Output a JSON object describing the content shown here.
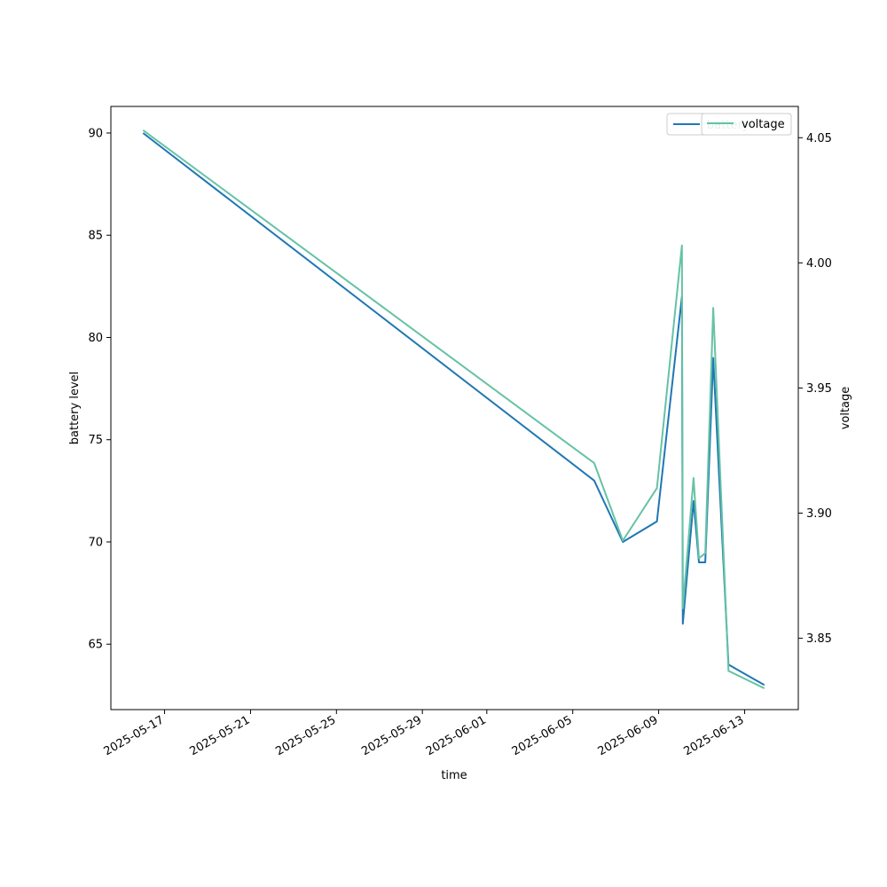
{
  "chart_data": {
    "type": "line",
    "xlabel": "time",
    "ylabel_left": "battery level",
    "ylabel_right": "voltage",
    "x_ticks": [
      "2025-05-17",
      "2025-05-21",
      "2025-05-25",
      "2025-05-29",
      "2025-06-01",
      "2025-06-05",
      "2025-06-09",
      "2025-06-13"
    ],
    "y_left_ticks": [
      65,
      70,
      75,
      80,
      85,
      90
    ],
    "y_right_ticks": [
      "3.85",
      "3.90",
      "3.95",
      "4.00",
      "4.05"
    ],
    "xlim": [
      "2025-05-14 12:00",
      "2025-06-15 12:00"
    ],
    "ylim_left": [
      61.8,
      91.3
    ],
    "ylim_right": [
      3.8215,
      4.0625
    ],
    "grid": false,
    "legend_position": "top-right",
    "series": [
      {
        "name": "battery",
        "axis": "left",
        "color": "#1f77b4",
        "points": [
          [
            "2025-05-16 00:00",
            90
          ],
          [
            "2025-06-06 00:00",
            73
          ],
          [
            "2025-06-07 08:00",
            70
          ],
          [
            "2025-06-08 22:00",
            71
          ],
          [
            "2025-06-10 02:00",
            82
          ],
          [
            "2025-06-10 03:00",
            66
          ],
          [
            "2025-06-10 15:00",
            72
          ],
          [
            "2025-06-10 21:00",
            69
          ],
          [
            "2025-06-11 04:00",
            69
          ],
          [
            "2025-06-11 13:00",
            79
          ],
          [
            "2025-06-12 06:00",
            64
          ],
          [
            "2025-06-13 22:00",
            63
          ]
        ]
      },
      {
        "name": "voltage",
        "axis": "right",
        "color": "#66c2a5",
        "points": [
          [
            "2025-05-16 00:00",
            4.053
          ],
          [
            "2025-06-06 00:00",
            3.92
          ],
          [
            "2025-06-07 08:00",
            3.889
          ],
          [
            "2025-06-08 22:00",
            3.91
          ],
          [
            "2025-06-10 02:00",
            4.007
          ],
          [
            "2025-06-10 03:00",
            3.862
          ],
          [
            "2025-06-10 15:00",
            3.914
          ],
          [
            "2025-06-10 21:00",
            3.882
          ],
          [
            "2025-06-11 04:00",
            3.884
          ],
          [
            "2025-06-11 13:00",
            3.982
          ],
          [
            "2025-06-12 06:00",
            3.837
          ],
          [
            "2025-06-13 22:00",
            3.83
          ]
        ]
      }
    ]
  }
}
